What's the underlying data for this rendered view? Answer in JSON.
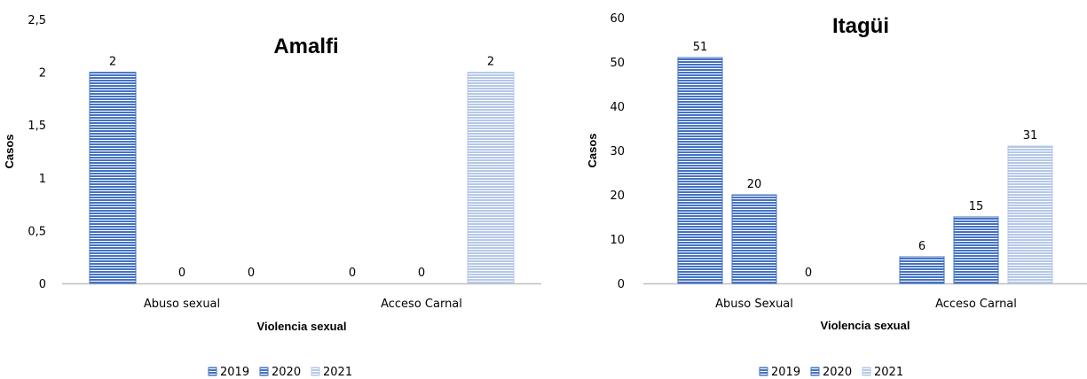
{
  "chart_data": [
    {
      "type": "bar",
      "title": "Amalfi",
      "xlabel": "Violencia sexual",
      "ylabel": "Casos",
      "ylim": [
        0,
        2.5
      ],
      "yticks": [
        "0",
        "0,5",
        "1",
        "1,5",
        "2",
        "2,5"
      ],
      "categories": [
        "Abuso sexual",
        "Acceso Carnal"
      ],
      "series": [
        {
          "name": "2019",
          "values": [
            2,
            0
          ],
          "color": "#4472C4"
        },
        {
          "name": "2020",
          "values": [
            0,
            0
          ],
          "color": "#4472C4"
        },
        {
          "name": "2021",
          "values": [
            0,
            2
          ],
          "color": "#B4C7E7"
        }
      ],
      "legend": "bottom",
      "grid": false
    },
    {
      "type": "bar",
      "title": "Itagüi",
      "xlabel": "Violencia sexual",
      "ylabel": "Casos",
      "ylim": [
        0,
        60
      ],
      "yticks": [
        "0",
        "10",
        "20",
        "30",
        "40",
        "50",
        "60"
      ],
      "categories": [
        "Abuso Sexual",
        "Acceso Carnal"
      ],
      "series": [
        {
          "name": "2019",
          "values": [
            51,
            6
          ],
          "color": "#4472C4"
        },
        {
          "name": "2020",
          "values": [
            20,
            15
          ],
          "color": "#4472C4"
        },
        {
          "name": "2021",
          "values": [
            0,
            31
          ],
          "color": "#B4C7E7"
        }
      ],
      "legend": "bottom",
      "grid": false
    }
  ]
}
